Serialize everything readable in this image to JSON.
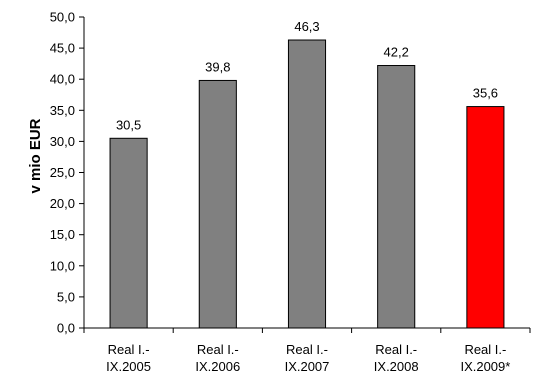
{
  "chart_data": {
    "type": "bar",
    "title": "",
    "xlabel": "",
    "ylabel": "v mio EUR",
    "ylim": [
      0,
      50
    ],
    "ytick_step": 5,
    "grid": false,
    "legend": "none",
    "categories": [
      [
        "Real I.-",
        "IX.2005"
      ],
      [
        "Real I.-",
        "IX.2006"
      ],
      [
        "Real I.-",
        "IX.2007"
      ],
      [
        "Real I.-",
        "IX.2008"
      ],
      [
        "Real I.-",
        "IX.2009*"
      ]
    ],
    "values": [
      30.5,
      39.8,
      46.3,
      42.2,
      35.6
    ],
    "value_labels": [
      "30,5",
      "39,8",
      "46,3",
      "42,2",
      "35,6"
    ],
    "bar_colors": [
      "#808080",
      "#808080",
      "#808080",
      "#808080",
      "#ff0000"
    ],
    "decimal_separator": ","
  }
}
